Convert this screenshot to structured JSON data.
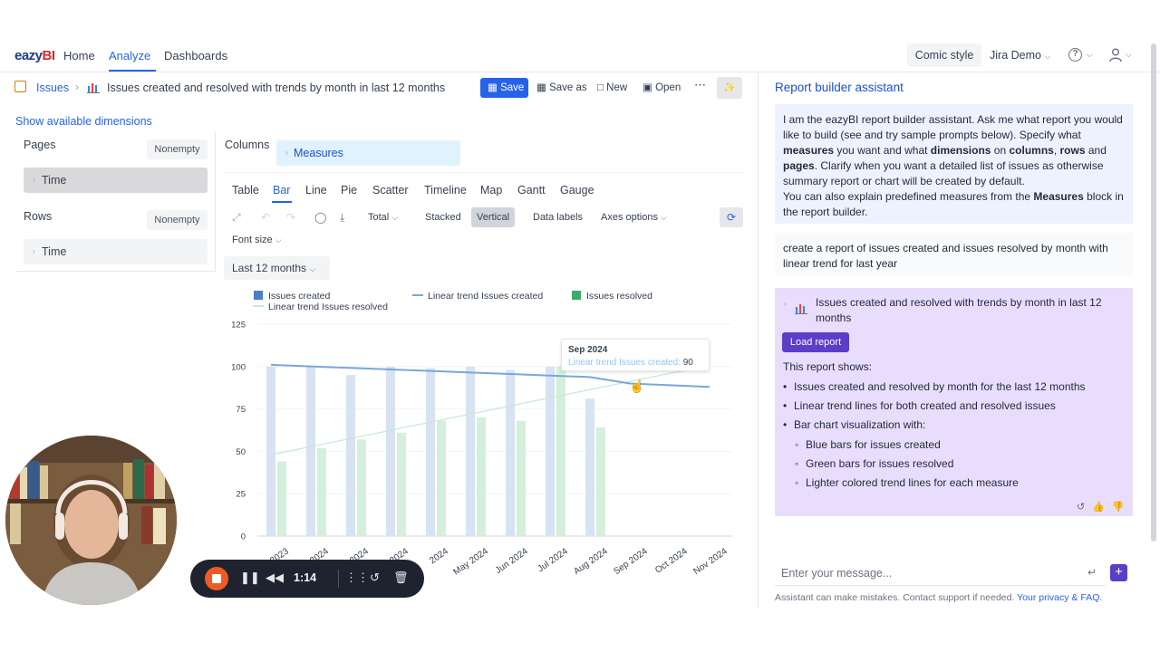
{
  "nav": {
    "logo": "eazyBI",
    "links": [
      "Home",
      "Analyze",
      "Dashboards"
    ],
    "active": "Analyze",
    "comic_style": "Comic style",
    "account": "Jira Demo"
  },
  "breadcrumb": {
    "root": "Issues",
    "title": "Issues created and resolved with trends by month in last 12 months"
  },
  "toolbar": {
    "save": "Save",
    "save_as": "Save as",
    "new": "New",
    "open": "Open"
  },
  "left_panel": {
    "show_dimensions": "Show available dimensions",
    "pages_label": "Pages",
    "rows_label": "Rows",
    "nonempty": "Nonempty",
    "pages_dim": "Time",
    "rows_dim": "Time"
  },
  "columns": {
    "label": "Columns",
    "measures": "Measures"
  },
  "chart_types": [
    "Table",
    "Bar",
    "Line",
    "Pie",
    "Scatter",
    "Timeline",
    "Map",
    "Gantt",
    "Gauge"
  ],
  "active_chart_type": "Bar",
  "options": {
    "total": "Total",
    "stacked": "Stacked",
    "vertical": "Vertical",
    "data_labels": "Data labels",
    "axes_options": "Axes options",
    "font_size": "Font size",
    "period": "Last 12 months"
  },
  "legend": {
    "created": "Issues created",
    "trend_created": "Linear trend Issues created",
    "resolved": "Issues resolved",
    "trend_resolved": "Linear trend Issues resolved"
  },
  "colors": {
    "accent": "#2563eb",
    "created_legend": "#4a7fc8",
    "created_bar": "#d7e3f3",
    "resolved_legend": "#3dab6e",
    "resolved_bar": "#d4efdc",
    "trend_created": "#7aa7d9",
    "trend_resolved": "#c8e8d2",
    "assistant_purple": "#5b3ec8"
  },
  "chart_data": {
    "type": "bar",
    "categories": [
      "Dec 2023",
      "Jan 2024",
      "Feb 2024",
      "Mar 2024",
      "Apr 2024",
      "May 2024",
      "Jun 2024",
      "Jul 2024",
      "Aug 2024",
      "Sep 2024",
      "Oct 2024",
      "Nov 2024"
    ],
    "tick_labels": [
      "2023",
      "2024",
      "2024",
      "2024",
      "2024",
      "May 2024",
      "Jun 2024",
      "Jul 2024",
      "Aug 2024",
      "Sep 2024",
      "Oct 2024",
      "Nov 2024"
    ],
    "series": [
      {
        "name": "Issues created",
        "values": [
          100,
          100,
          95,
          100,
          99,
          100,
          98,
          100,
          81,
          null,
          null,
          null
        ]
      },
      {
        "name": "Issues resolved",
        "values": [
          44,
          52,
          57,
          61,
          68,
          70,
          68,
          100,
          64,
          null,
          null,
          null
        ]
      },
      {
        "name": "Linear trend Issues created",
        "values": [
          101,
          100.1,
          99.2,
          98.3,
          97.4,
          96.5,
          95.6,
          94.7,
          93.8,
          90,
          89,
          88
        ]
      },
      {
        "name": "Linear trend Issues resolved",
        "values": [
          48,
          52.8,
          57.6,
          62.4,
          67.2,
          72,
          76.8,
          81.6,
          86.4,
          91.2,
          96,
          100
        ]
      }
    ],
    "y_ticks": [
      0,
      25,
      50,
      75,
      100,
      125
    ],
    "ylim": [
      0,
      125
    ],
    "legend_position": "top"
  },
  "tooltip": {
    "title": "Sep 2024",
    "series": "Linear trend Issues created:",
    "value": "90"
  },
  "assistant": {
    "title": "Report builder assistant",
    "intro": [
      {
        "t": "I am the eazyBI report builder assistant. Ask me what report you would like to build (see and try sample prompts below). Specify what ",
        "b": false
      },
      {
        "t": "measures",
        "b": true
      },
      {
        "t": " you want and what ",
        "b": false
      },
      {
        "t": "dimensions",
        "b": true
      },
      {
        "t": " on ",
        "b": false
      },
      {
        "t": "columns",
        "b": true
      },
      {
        "t": ", ",
        "b": false
      },
      {
        "t": "rows",
        "b": true
      },
      {
        "t": " and ",
        "b": false
      },
      {
        "t": "pages",
        "b": true
      },
      {
        "t": ". Clarify when you want a detailed list of issues as otherwise summary report or chart will be created by default.",
        "b": false
      }
    ],
    "intro2": [
      {
        "t": "You can also explain predefined measures from the ",
        "b": false
      },
      {
        "t": "Measures",
        "b": true
      },
      {
        "t": " block in the report builder.",
        "b": false
      }
    ],
    "user_prompt": "create a report of issues created and issues resolved by month with linear trend for last year",
    "response_title": "Issues created and resolved with trends by month in last 12 months",
    "load_report": "Load report",
    "shows_label": "This report shows:",
    "bullets": [
      "Issues created and resolved by month for the last 12 months",
      "Linear trend lines for both created and resolved issues",
      "Bar chart visualization with:"
    ],
    "sub_bullets": [
      "Blue bars for issues created",
      "Green bars for issues resolved",
      "Lighter colored trend lines for each measure"
    ],
    "input_placeholder": "Enter your message...",
    "disclaimer": "Assistant can make mistakes. Contact support if needed.",
    "privacy_link": "Your privacy & FAQ."
  },
  "recorder": {
    "time": "1:14"
  }
}
